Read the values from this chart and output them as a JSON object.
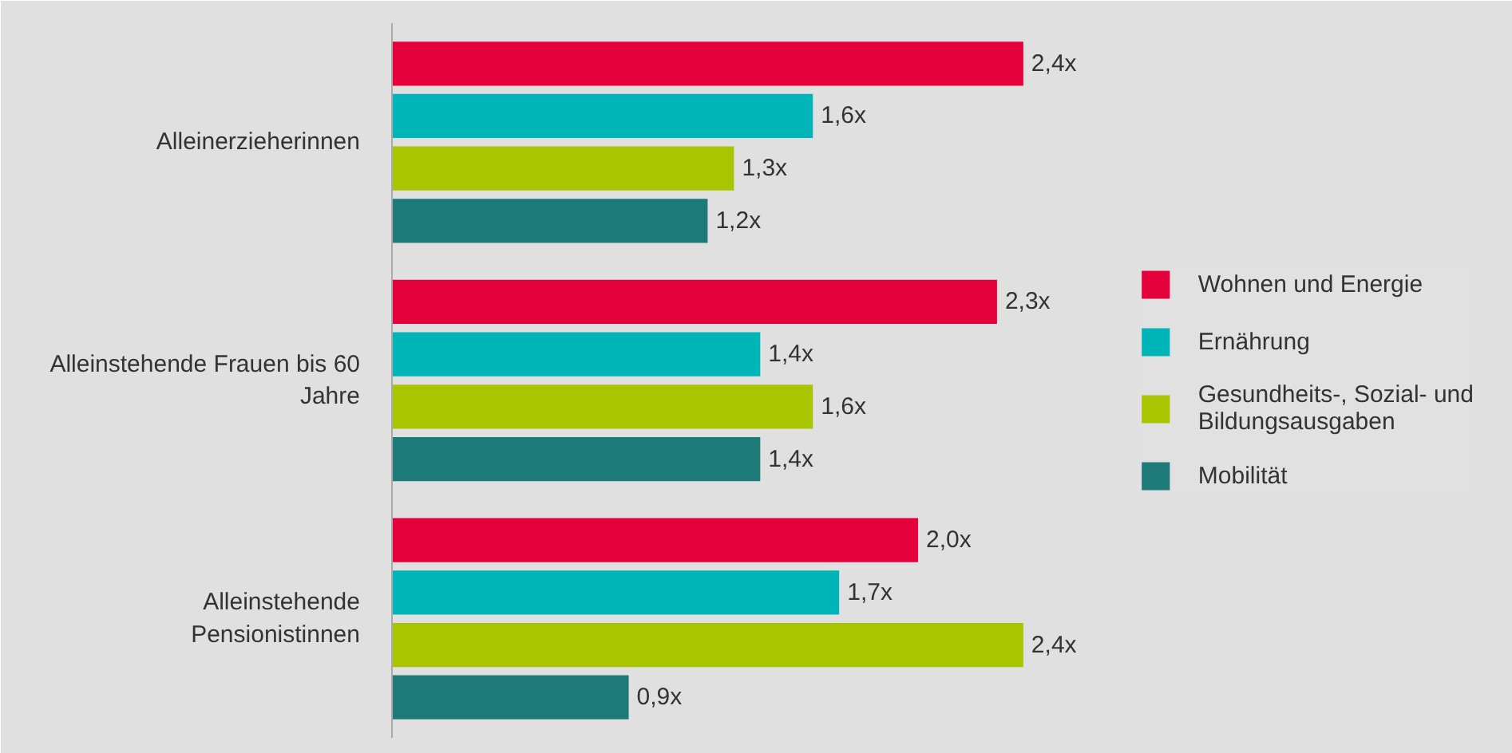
{
  "chart_data": {
    "type": "bar",
    "orientation": "horizontal",
    "categories": [
      "Alleinerzieherinnen",
      "Alleinstehende Frauen bis 60 Jahre",
      "Alleinstehende Pensionistinnen"
    ],
    "series": [
      {
        "name": "Wohnen und Energie",
        "color": "#e4003a",
        "values": [
          2.4,
          2.3,
          2.0
        ],
        "value_labels": [
          "2,4x",
          "2,3x",
          "2,0x"
        ]
      },
      {
        "name": "Ernährung",
        "color": "#00b5b8",
        "values": [
          1.6,
          1.4,
          1.7
        ],
        "value_labels": [
          "1,6x",
          "1,4x",
          "1,7x"
        ]
      },
      {
        "name": "Gesundheits-, Sozial- und Bildungsausgaben",
        "color": "#a9c400",
        "values": [
          1.3,
          1.6,
          2.4
        ],
        "value_labels": [
          "1,3x",
          "1,6x",
          "2,4x"
        ]
      },
      {
        "name": "Mobilität",
        "color": "#1e7a78",
        "values": [
          1.2,
          1.4,
          0.9
        ],
        "value_labels": [
          "1,2x",
          "1,4x",
          "0,9x"
        ]
      }
    ],
    "legend": "right"
  }
}
